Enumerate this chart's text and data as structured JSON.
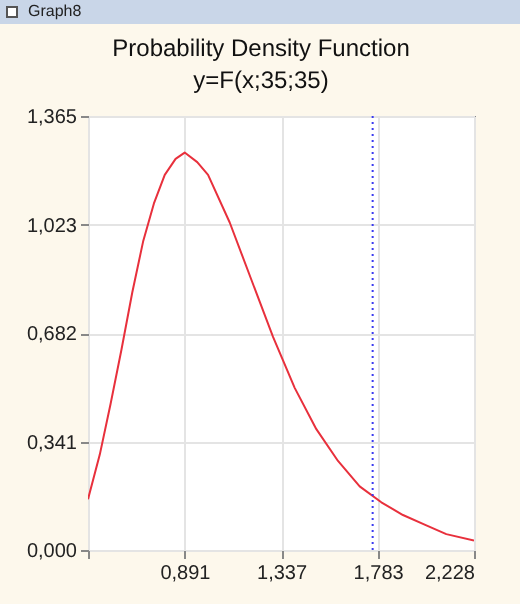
{
  "chart_data": {
    "type": "line",
    "title": "Probability Density Function",
    "subtitle": "y=F(x;35;35)",
    "annotations": [
      "Graph8"
    ],
    "x": [
      0.4456,
      0.5,
      0.55,
      0.6,
      0.65,
      0.7,
      0.75,
      0.8,
      0.85,
      0.892,
      0.95,
      1.0,
      1.1,
      1.2,
      1.3,
      1.4,
      1.5,
      1.6,
      1.7,
      1.8,
      1.9,
      2.0,
      2.1,
      2.228
    ],
    "series": [
      {
        "color": "#e8303c",
        "values": [
          0.16,
          0.3,
          0.46,
          0.63,
          0.81,
          0.97,
          1.09,
          1.18,
          1.23,
          1.25,
          1.22,
          1.18,
          1.03,
          0.85,
          0.67,
          0.51,
          0.38,
          0.28,
          0.2,
          0.15,
          0.11,
          0.08,
          0.05,
          0.03
        ]
      }
    ],
    "xlim": [
      0.4456,
      2.228
    ],
    "xticks": [
      {
        "value": 0.4456,
        "label": null
      },
      {
        "value": 0.891,
        "label": "0,891"
      },
      {
        "value": 1.337,
        "label": "1,337"
      },
      {
        "value": 1.783,
        "label": "1,783"
      },
      {
        "value": 2.228,
        "label": "2,228"
      }
    ],
    "ylim": [
      0,
      1.365
    ],
    "yticks": [
      {
        "value": 0,
        "label": "0,000"
      },
      {
        "value": 0.341,
        "label": "0,341"
      },
      {
        "value": 0.682,
        "label": "0,682"
      },
      {
        "value": 1.023,
        "label": "1,023"
      },
      {
        "value": 1.365,
        "label": "1,365"
      }
    ],
    "ref_lines": [
      {
        "axis": "x",
        "value": 1.76,
        "color": "#3b3bf0",
        "line_style": "dotted"
      }
    ],
    "grid": true,
    "marker": "none",
    "line_style": "solid"
  }
}
